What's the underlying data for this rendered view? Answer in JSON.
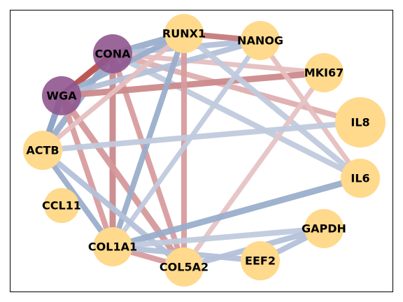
{
  "network": {
    "nodes": [
      {
        "id": "RUNX1",
        "label": "RUNX1",
        "size": "medium",
        "color": "#ffd98c"
      },
      {
        "id": "NANOG",
        "label": "NANOG",
        "size": "medium",
        "color": "#ffd98c"
      },
      {
        "id": "CONA",
        "label": "CONA",
        "size": "medium",
        "color": "#90568f"
      },
      {
        "id": "MKI67",
        "label": "MKI67",
        "size": "medium",
        "color": "#ffd98c"
      },
      {
        "id": "WGA",
        "label": "WGA",
        "size": "medium",
        "color": "#90568f"
      },
      {
        "id": "IL8",
        "label": "IL8",
        "size": "large",
        "color": "#ffd98c"
      },
      {
        "id": "ACTB",
        "label": "ACTB",
        "size": "medium",
        "color": "#ffd98c"
      },
      {
        "id": "IL6",
        "label": "IL6",
        "size": "medium",
        "color": "#ffd98c"
      },
      {
        "id": "CCL11",
        "label": "CCL11",
        "size": "small",
        "color": "#ffd98c"
      },
      {
        "id": "GAPDH",
        "label": "GAPDH",
        "size": "medium",
        "color": "#ffd98c"
      },
      {
        "id": "COL1A1",
        "label": "COL1A1",
        "size": "medium",
        "color": "#ffd98c"
      },
      {
        "id": "EEF2",
        "label": "EEF2",
        "size": "medium",
        "color": "#ffd98c"
      },
      {
        "id": "COL5A2",
        "label": "COL5A2",
        "size": "medium",
        "color": "#ffd98c"
      }
    ],
    "edges": [
      {
        "source": "CONA",
        "target": "RUNX1",
        "color": "#9aaecb",
        "weight": "strong"
      },
      {
        "source": "CONA",
        "target": "NANOG",
        "color": "#b3c1d9",
        "weight": "medium"
      },
      {
        "source": "CONA",
        "target": "IL8",
        "color": "#dfaeb0",
        "weight": "medium"
      },
      {
        "source": "CONA",
        "target": "IL6",
        "color": "#c0cadd",
        "weight": "medium"
      },
      {
        "source": "CONA",
        "target": "COL1A1",
        "color": "#c98a8c",
        "weight": "strong"
      },
      {
        "source": "CONA",
        "target": "COL5A2",
        "color": "#d89c9e",
        "weight": "medium"
      },
      {
        "source": "CONA",
        "target": "ACTB",
        "color": "#9aaecb",
        "weight": "strong"
      },
      {
        "source": "CONA",
        "target": "MKI67",
        "color": "#e6bfc0",
        "weight": "light"
      },
      {
        "source": "WGA",
        "target": "CONA",
        "color": "#b94e4b",
        "weight": "strong"
      },
      {
        "source": "WGA",
        "target": "RUNX1",
        "color": "#9aaecb",
        "weight": "medium"
      },
      {
        "source": "WGA",
        "target": "NANOG",
        "color": "#b3c1d9",
        "weight": "medium"
      },
      {
        "source": "WGA",
        "target": "MKI67",
        "color": "#cc8a8c",
        "weight": "strong"
      },
      {
        "source": "WGA",
        "target": "COL1A1",
        "color": "#d89c9e",
        "weight": "medium"
      },
      {
        "source": "WGA",
        "target": "COL5A2",
        "color": "#d5999b",
        "weight": "strong"
      },
      {
        "source": "WGA",
        "target": "ACTB",
        "color": "#8aa0c3",
        "weight": "strong"
      },
      {
        "source": "RUNX1",
        "target": "NANOG",
        "color": "#c47a7a",
        "weight": "medium"
      },
      {
        "source": "RUNX1",
        "target": "IL6",
        "color": "#c0cadd",
        "weight": "medium"
      },
      {
        "source": "RUNX1",
        "target": "COL1A1",
        "color": "#9aaecb",
        "weight": "medium"
      },
      {
        "source": "RUNX1",
        "target": "COL5A2",
        "color": "#d89c9e",
        "weight": "medium"
      },
      {
        "source": "RUNX1",
        "target": "ACTB",
        "color": "#e6bfc0",
        "weight": "light"
      },
      {
        "source": "NANOG",
        "target": "IL6",
        "color": "#e6bfc0",
        "weight": "light"
      },
      {
        "source": "NANOG",
        "target": "COL1A1",
        "color": "#c0cadd",
        "weight": "light"
      },
      {
        "source": "MKI67",
        "target": "COL5A2",
        "color": "#e6c3c4",
        "weight": "light"
      },
      {
        "source": "ACTB",
        "target": "IL8",
        "color": "#c0cadd",
        "weight": "medium"
      },
      {
        "source": "ACTB",
        "target": "COL1A1",
        "color": "#9aaecb",
        "weight": "medium"
      },
      {
        "source": "ACTB",
        "target": "COL5A2",
        "color": "#b3c1d9",
        "weight": "medium"
      },
      {
        "source": "IL6",
        "target": "COL1A1",
        "color": "#9aaecb",
        "weight": "strong"
      },
      {
        "source": "GAPDH",
        "target": "COL1A1",
        "color": "#c0cadd",
        "weight": "medium"
      },
      {
        "source": "GAPDH",
        "target": "COL5A2",
        "color": "#b3c1d9",
        "weight": "medium"
      },
      {
        "source": "GAPDH",
        "target": "EEF2",
        "color": "#b3c1d9",
        "weight": "medium"
      },
      {
        "source": "COL1A1",
        "target": "COL5A2",
        "color": "#d89c9e",
        "weight": "medium"
      },
      {
        "source": "COL1A1",
        "target": "EEF2",
        "color": "#b3c1d9",
        "weight": "medium"
      }
    ]
  }
}
